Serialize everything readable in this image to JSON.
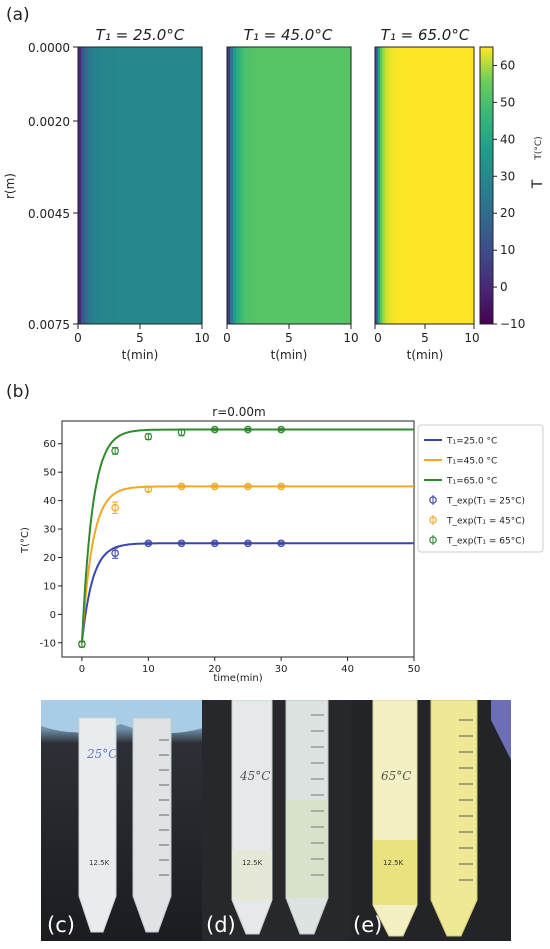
{
  "panel_labels": {
    "a": "(a)",
    "b": "(b)",
    "c": "(c)",
    "d": "(d)",
    "e": "(e)"
  },
  "colors": {
    "viridis_dark": "#440154",
    "viridis_mid": "#21918c",
    "viridis_green": "#5ec962",
    "viridis_yellow": "#fde725",
    "s25": "#3a47a8",
    "s45": "#f5a623",
    "s65": "#2e8b2e"
  },
  "chart_data": [
    {
      "type": "heatmap",
      "id": "heatmap-t25",
      "title": "T₁ = 25.0°C",
      "xlabel": "t(min)",
      "ylabel": "r(m)",
      "xlim": [
        0,
        10
      ],
      "ylim": [
        0.0075,
        0.0
      ],
      "x_ticks": [
        "0",
        "5",
        "10"
      ],
      "y_ticks": [
        "0.0000",
        "0.0020",
        "0.0045",
        "0.0075"
      ],
      "T_initial": -10,
      "T_final": 25
    },
    {
      "type": "heatmap",
      "id": "heatmap-t45",
      "title": "T₁ = 45.0°C",
      "xlabel": "t(min)",
      "xlim": [
        0,
        10
      ],
      "x_ticks": [
        "0",
        "5",
        "10"
      ],
      "T_initial": -10,
      "T_final": 45
    },
    {
      "type": "heatmap",
      "id": "heatmap-t65",
      "title": "T₁ = 65.0°C",
      "xlabel": "t(min)",
      "xlim": [
        0,
        10
      ],
      "x_ticks": [
        "0",
        "5",
        "10"
      ],
      "T_initial": -10,
      "T_final": 65,
      "colorbar": {
        "label": "T",
        "units": "T(°C)",
        "range": [
          -10,
          65
        ],
        "ticks": [
          "60",
          "50",
          "40",
          "30",
          "20",
          "10",
          "0",
          "−10"
        ]
      }
    },
    {
      "type": "line",
      "id": "line-chart-r0",
      "title": "r=0.00m",
      "xlabel": "time(min)",
      "ylabel": "T(°C)",
      "xlim": [
        -3,
        50
      ],
      "ylim": [
        -15,
        68
      ],
      "x_ticks": [
        0,
        10,
        20,
        30,
        40,
        50
      ],
      "y_ticks": [
        -10,
        0,
        10,
        20,
        30,
        40,
        50,
        60
      ],
      "grid": false,
      "legend": "right",
      "series": [
        {
          "name": "T₁=25.0 °C",
          "kind": "model",
          "T_initial": -10,
          "T_final": 25,
          "tau": 1.6
        },
        {
          "name": "T₁=45.0 °C",
          "kind": "model",
          "T_initial": -10,
          "T_final": 45,
          "tau": 1.6
        },
        {
          "name": "T₁=65.0 °C",
          "kind": "model",
          "T_initial": -10,
          "T_final": 65,
          "tau": 1.6
        },
        {
          "name": "T_exp(T₁ = 25°C)",
          "kind": "experiment",
          "x": [
            0,
            5,
            10,
            15,
            20,
            25,
            30
          ],
          "y": [
            -10.5,
            21.5,
            25,
            25,
            25,
            25,
            25
          ],
          "err": [
            1,
            1.8,
            0.5,
            0.5,
            0.5,
            0.5,
            0.5
          ]
        },
        {
          "name": "T_exp(T₁ = 45°C)",
          "kind": "experiment",
          "x": [
            0,
            5,
            10,
            15,
            20,
            25,
            30
          ],
          "y": [
            -10.5,
            37.5,
            44,
            45,
            45,
            45,
            45
          ],
          "err": [
            1,
            2,
            0.8,
            0.5,
            0.5,
            0.5,
            0.5
          ]
        },
        {
          "name": "T_exp(T₁ = 65°C)",
          "kind": "experiment",
          "x": [
            0,
            5,
            10,
            15,
            20,
            25,
            30
          ],
          "y": [
            -10.5,
            57.5,
            62.5,
            64,
            65,
            65,
            65
          ],
          "err": [
            1,
            1.2,
            1,
            1.2,
            0.5,
            0.5,
            0.5
          ]
        }
      ]
    }
  ],
  "photos": [
    {
      "id": "photo-25",
      "tube_label": "25°C",
      "tube_mark": "12.5K"
    },
    {
      "id": "photo-45",
      "tube_label": "45°C",
      "tube_mark": "12.5K"
    },
    {
      "id": "photo-65",
      "tube_label": "65°C",
      "tube_mark": "12.5K"
    }
  ]
}
